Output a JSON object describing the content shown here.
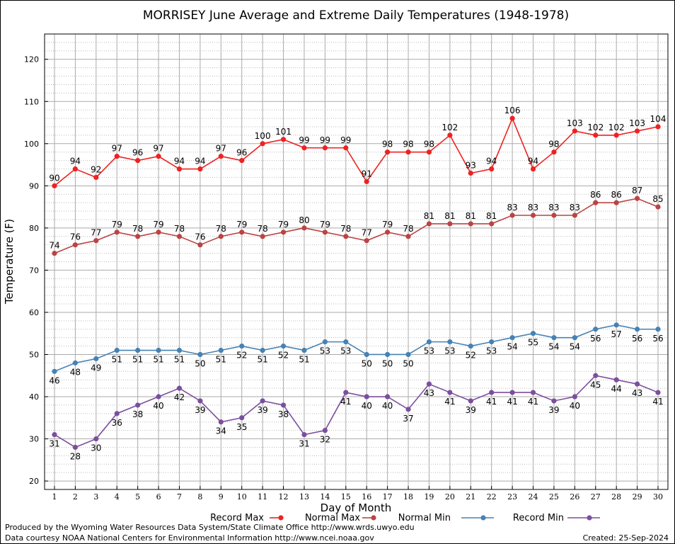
{
  "chart_data": {
    "type": "line",
    "title": "MORRISEY June Average and Extreme Daily Temperatures (1948-1978)",
    "xlabel": "Day of Month",
    "ylabel": "Temperature (F)",
    "xlim": [
      1,
      30
    ],
    "ylim": [
      18,
      126
    ],
    "yticks": [
      20,
      30,
      40,
      50,
      60,
      70,
      80,
      90,
      100,
      110,
      120
    ],
    "x": [
      1,
      2,
      3,
      4,
      5,
      6,
      7,
      8,
      9,
      10,
      11,
      12,
      13,
      14,
      15,
      16,
      17,
      18,
      19,
      20,
      21,
      22,
      23,
      24,
      25,
      26,
      27,
      28,
      29,
      30
    ],
    "grid": true,
    "legend_position": "bottom",
    "series": [
      {
        "name": "Record Max",
        "color": "#ee2222",
        "label_position": "above",
        "values": [
          90,
          94,
          92,
          97,
          96,
          97,
          94,
          94,
          97,
          96,
          100,
          101,
          99,
          99,
          99,
          91,
          98,
          98,
          98,
          102,
          93,
          94,
          106,
          94,
          98,
          103,
          102,
          102,
          103,
          104
        ]
      },
      {
        "name": "Normal Max",
        "color": "#bb4444",
        "label_position": "above",
        "values": [
          74,
          76,
          77,
          79,
          78,
          79,
          78,
          76,
          78,
          79,
          78,
          79,
          80,
          79,
          78,
          77,
          79,
          78,
          81,
          81,
          81,
          81,
          83,
          83,
          83,
          83,
          86,
          86,
          87,
          85
        ]
      },
      {
        "name": "Normal Min",
        "color": "#4682b4",
        "label_position": "below",
        "values": [
          46,
          48,
          49,
          51,
          51,
          51,
          51,
          50,
          51,
          52,
          51,
          52,
          51,
          53,
          53,
          50,
          50,
          50,
          53,
          53,
          52,
          53,
          54,
          55,
          54,
          54,
          56,
          57,
          56,
          56
        ]
      },
      {
        "name": "Record Min",
        "color": "#7b4f9d",
        "label_position": "below",
        "values": [
          31,
          28,
          30,
          36,
          38,
          40,
          42,
          39,
          34,
          35,
          39,
          38,
          31,
          32,
          41,
          40,
          40,
          37,
          43,
          41,
          39,
          41,
          41,
          41,
          39,
          40,
          45,
          44,
          43,
          41
        ]
      }
    ]
  },
  "footer": {
    "produced_by": "Produced by the Wyoming Water Resources Data System/State Climate Office http://www.wrds.uwyo.edu",
    "courtesy": "Data courtesy NOAA National Centers for Environmental Information http://www.ncei.noaa.gov",
    "created": "Created:  25-Sep-2024"
  }
}
